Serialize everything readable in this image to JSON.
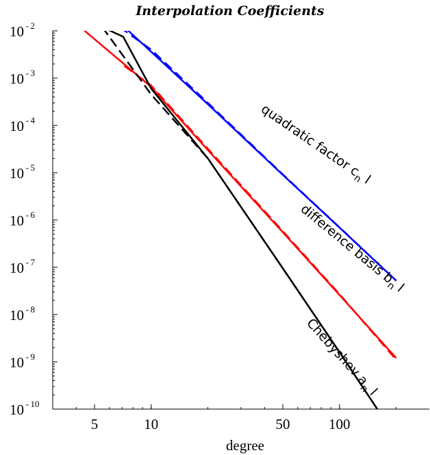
{
  "chart_data": {
    "type": "line",
    "title": "Interpolation Coefficients",
    "xlabel": "degree",
    "ylabel": "",
    "x_scale": "log",
    "y_scale": "log",
    "xlim": [
      3,
      300
    ],
    "ylim": [
      1e-10,
      0.01
    ],
    "x_ticks": [
      5,
      10,
      50,
      100
    ],
    "x_tick_labels": [
      "5",
      "10",
      "50",
      "100"
    ],
    "y_tick_exponents": [
      -2,
      -3,
      -4,
      -5,
      -6,
      -7,
      -8,
      -9,
      -10
    ],
    "y_tick_base": "10",
    "grid": false,
    "series": [
      {
        "color": "#0000ff",
        "dash": "solid",
        "x": [
          7.2,
          10,
          20,
          50,
          100,
          200
        ],
        "y": [
          0.012,
          0.0036,
          0.00028,
          9e-06,
          6.9e-07,
          5.2e-08
        ]
      },
      {
        "color": "#0000ff",
        "dash": "dashed",
        "x": [
          6.8,
          10,
          20,
          50,
          100,
          200
        ],
        "y": [
          0.012,
          0.004,
          0.0003,
          9.2e-06,
          7e-07,
          5.2e-08
        ]
      },
      {
        "color": "#ff0000",
        "dash": "solid",
        "x": [
          4.2,
          10,
          20,
          50,
          100,
          200
        ],
        "y": [
          0.012,
          0.00065,
          3e-05,
          5.5e-07,
          2.6e-08,
          1.2e-09
        ]
      },
      {
        "color": "#ff0000",
        "dash": "dashed",
        "x": [
          7.2,
          10,
          20,
          50,
          100,
          200
        ],
        "y": [
          0.0018,
          0.0007,
          3.2e-05,
          5.8e-07,
          2.7e-08,
          1.1e-09
        ]
      },
      {
        "color": "#000000",
        "dash": "solid",
        "x": [
          5.5,
          7.1,
          10,
          20,
          50,
          100,
          200
        ],
        "y": [
          0.012,
          0.0075,
          0.0006,
          2e-05,
          9.5e-08,
          1.6e-09,
          2.5e-11
        ]
      },
      {
        "color": "#000000",
        "dash": "dashed",
        "x": [
          5.5,
          10,
          20,
          50,
          100,
          200
        ],
        "y": [
          0.012,
          0.00045,
          2e-05,
          9.5e-08,
          1.6e-09,
          2.5e-11
        ]
      }
    ],
    "annotations": [
      {
        "text": "quadratic factor c",
        "sub": "n",
        "tail": "l",
        "color": "#000000"
      },
      {
        "text": "difference basis b",
        "sub": "n",
        "tail": "l",
        "color": "#000000"
      },
      {
        "text": "Chebyshev a",
        "sub": "n",
        "tail": "l",
        "color": "#000000"
      }
    ]
  }
}
